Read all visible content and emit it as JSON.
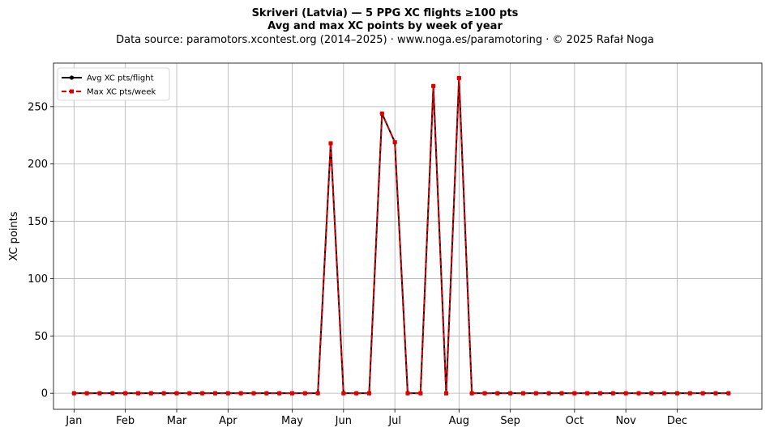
{
  "chart_data": {
    "type": "line",
    "title_line1": "Skriveri (Latvia)  —  5 PPG XC flights ≥100 pts",
    "title_line2": "Avg and max XC points by week of year",
    "subtitle": "Data source: paramotors.xcontest.org (2014–2025)  ·  www.noga.es/paramotoring  ·  © 2025 Rafał Noga",
    "xlabel": "",
    "ylabel": "XC points",
    "x_ticks": [
      {
        "label": "Jan",
        "week": 1
      },
      {
        "label": "Feb",
        "week": 5
      },
      {
        "label": "Mar",
        "week": 9
      },
      {
        "label": "Apr",
        "week": 13
      },
      {
        "label": "May",
        "week": 18
      },
      {
        "label": "Jun",
        "week": 22
      },
      {
        "label": "Jul",
        "week": 26
      },
      {
        "label": "Aug",
        "week": 31
      },
      {
        "label": "Sep",
        "week": 35
      },
      {
        "label": "Oct",
        "week": 40
      },
      {
        "label": "Nov",
        "week": 44
      },
      {
        "label": "Dec",
        "week": 48
      }
    ],
    "xlim": [
      -0.6,
      54.6
    ],
    "ylim": [
      -14,
      288
    ],
    "y_ticks": [
      0,
      50,
      100,
      150,
      200,
      250
    ],
    "grid": true,
    "legend_position": "top-left",
    "x": [
      1,
      2,
      3,
      4,
      5,
      6,
      7,
      8,
      9,
      10,
      11,
      12,
      13,
      14,
      15,
      16,
      17,
      18,
      19,
      20,
      21,
      22,
      23,
      24,
      25,
      26,
      27,
      28,
      29,
      30,
      31,
      32,
      33,
      34,
      35,
      36,
      37,
      38,
      39,
      40,
      41,
      42,
      43,
      44,
      45,
      46,
      47,
      48,
      49,
      50,
      51,
      52
    ],
    "series": [
      {
        "name": "Avg XC pts/flight",
        "color": "#000000",
        "style": "solid",
        "marker": "circle",
        "values": [
          0,
          0,
          0,
          0,
          0,
          0,
          0,
          0,
          0,
          0,
          0,
          0,
          0,
          0,
          0,
          0,
          0,
          0,
          0,
          0,
          218,
          0,
          0,
          0,
          244,
          219,
          0,
          0,
          268,
          0,
          275,
          0,
          0,
          0,
          0,
          0,
          0,
          0,
          0,
          0,
          0,
          0,
          0,
          0,
          0,
          0,
          0,
          0,
          0,
          0,
          0,
          0
        ]
      },
      {
        "name": "Max XC pts/week",
        "color": "#e00000",
        "style": "dashed",
        "marker": "square",
        "values": [
          0,
          0,
          0,
          0,
          0,
          0,
          0,
          0,
          0,
          0,
          0,
          0,
          0,
          0,
          0,
          0,
          0,
          0,
          0,
          0,
          218,
          0,
          0,
          0,
          244,
          219,
          0,
          0,
          268,
          0,
          275,
          0,
          0,
          0,
          0,
          0,
          0,
          0,
          0,
          0,
          0,
          0,
          0,
          0,
          0,
          0,
          0,
          0,
          0,
          0,
          0,
          0
        ]
      }
    ]
  }
}
